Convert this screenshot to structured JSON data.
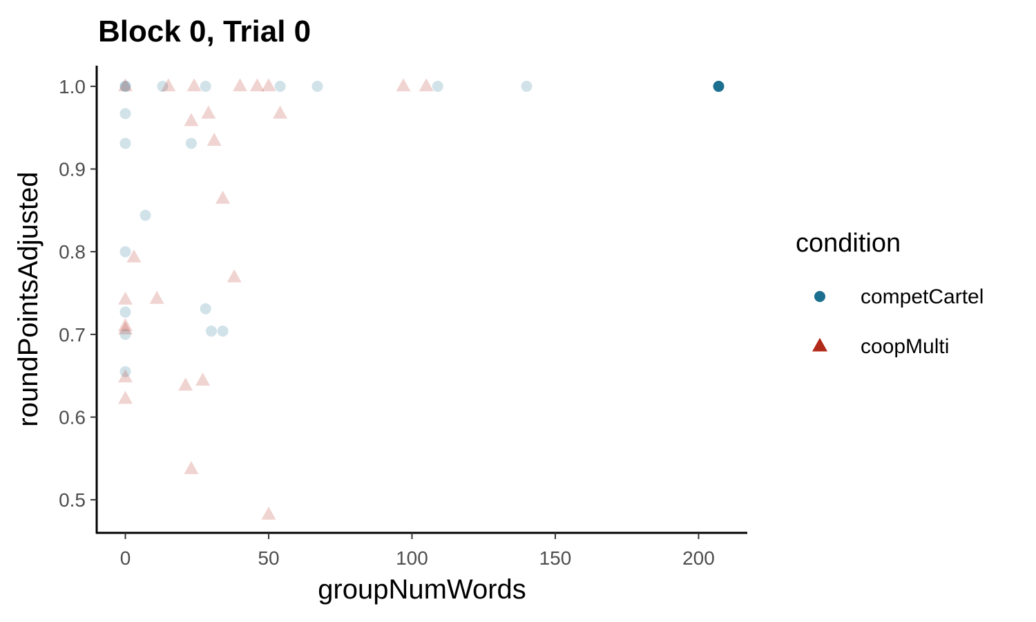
{
  "chart_data": {
    "type": "scatter",
    "title": "Block 0, Trial 0",
    "xlabel": "groupNumWords",
    "ylabel": "roundPointsAdjusted",
    "xlim": [
      -10,
      217
    ],
    "ylim": [
      0.46,
      1.025
    ],
    "x_ticks": [
      0,
      50,
      100,
      150,
      200
    ],
    "y_ticks": [
      0.5,
      0.6,
      0.7,
      0.8,
      0.9,
      1.0
    ],
    "x_tick_labels": [
      "0",
      "50",
      "100",
      "150",
      "200"
    ],
    "y_tick_labels": [
      "0.5",
      "0.6",
      "0.7",
      "0.8",
      "0.9",
      "1.0"
    ],
    "grid": false,
    "legend": {
      "title": "condition",
      "position": "right"
    },
    "series": [
      {
        "name": "competCartel",
        "marker": "circle",
        "color": "#1b6f8f",
        "points": [
          {
            "x": 0,
            "y": 1.0
          },
          {
            "x": 0,
            "y": 1.0
          },
          {
            "x": 0,
            "y": 0.967
          },
          {
            "x": 0,
            "y": 0.931
          },
          {
            "x": 0,
            "y": 0.8
          },
          {
            "x": 0,
            "y": 0.727
          },
          {
            "x": 0,
            "y": 0.7
          },
          {
            "x": 0,
            "y": 0.655
          },
          {
            "x": 7,
            "y": 0.844
          },
          {
            "x": 13,
            "y": 1.0
          },
          {
            "x": 23,
            "y": 0.931
          },
          {
            "x": 28,
            "y": 1.0
          },
          {
            "x": 28,
            "y": 0.731
          },
          {
            "x": 30,
            "y": 0.704
          },
          {
            "x": 34,
            "y": 0.704
          },
          {
            "x": 54,
            "y": 1.0
          },
          {
            "x": 67,
            "y": 1.0
          },
          {
            "x": 109,
            "y": 1.0
          },
          {
            "x": 140,
            "y": 1.0
          },
          {
            "x": 207,
            "y": 1.0
          }
        ]
      },
      {
        "name": "coopMulti",
        "marker": "triangle",
        "color": "#b22a1a",
        "points": [
          {
            "x": 0,
            "y": 1.0
          },
          {
            "x": 0,
            "y": 0.742
          },
          {
            "x": 0,
            "y": 0.71
          },
          {
            "x": 0,
            "y": 0.706
          },
          {
            "x": 0,
            "y": 0.648
          },
          {
            "x": 0,
            "y": 0.622
          },
          {
            "x": 3,
            "y": 0.793
          },
          {
            "x": 11,
            "y": 0.743
          },
          {
            "x": 15,
            "y": 1.0
          },
          {
            "x": 21,
            "y": 0.638
          },
          {
            "x": 23,
            "y": 0.958
          },
          {
            "x": 23,
            "y": 0.537
          },
          {
            "x": 24,
            "y": 1.0
          },
          {
            "x": 27,
            "y": 0.644
          },
          {
            "x": 29,
            "y": 0.967
          },
          {
            "x": 31,
            "y": 0.934
          },
          {
            "x": 34,
            "y": 0.864
          },
          {
            "x": 38,
            "y": 0.769
          },
          {
            "x": 40,
            "y": 1.0
          },
          {
            "x": 46,
            "y": 1.0
          },
          {
            "x": 50,
            "y": 1.0
          },
          {
            "x": 50,
            "y": 0.482
          },
          {
            "x": 54,
            "y": 0.967
          },
          {
            "x": 97,
            "y": 1.0
          },
          {
            "x": 105,
            "y": 1.0
          }
        ]
      }
    ]
  }
}
